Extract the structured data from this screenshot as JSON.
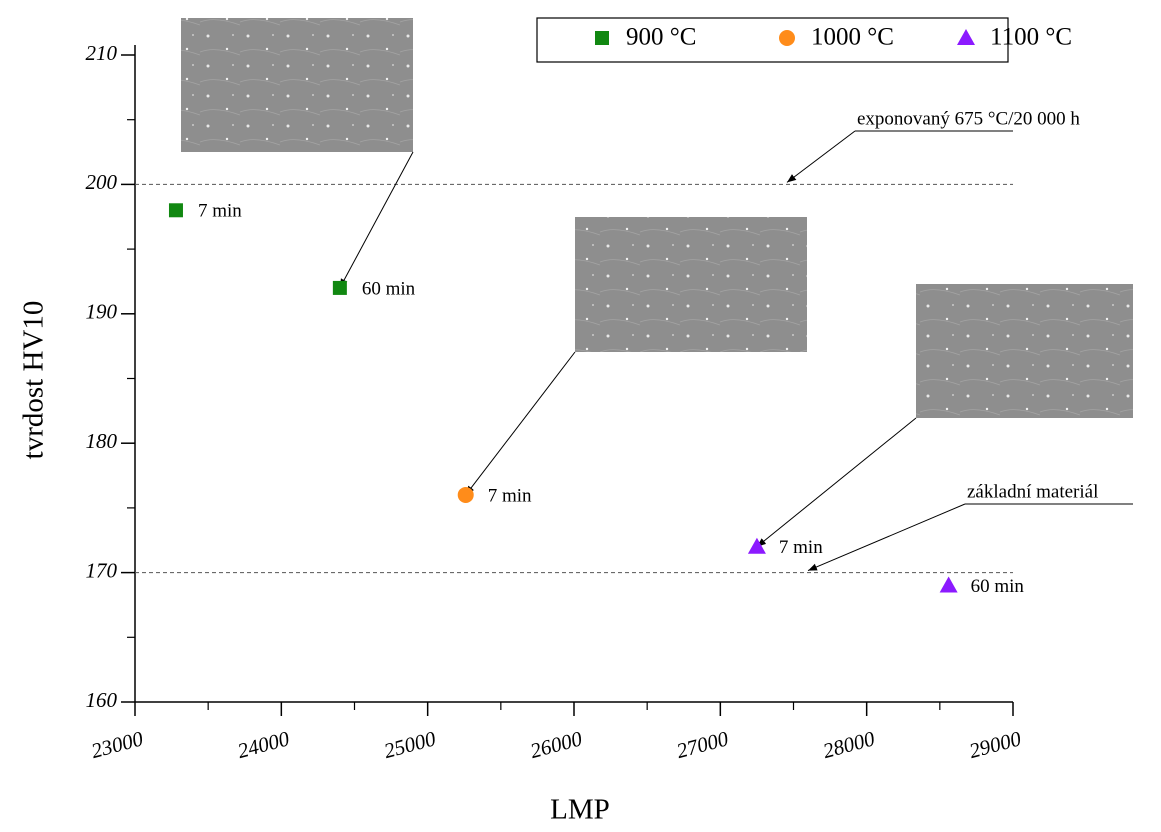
{
  "chart_data": {
    "type": "scatter",
    "x_label": "LMP",
    "y_label": "tvrdost HV10",
    "xlim": [
      23000,
      29000
    ],
    "xticks": [
      23000,
      24000,
      25000,
      26000,
      27000,
      28000,
      29000
    ],
    "xticks_minor": [
      23500,
      24500,
      25500,
      26500,
      27500,
      28500
    ],
    "ylim": [
      160,
      210
    ],
    "yticks": [
      160,
      170,
      180,
      190,
      200,
      210
    ],
    "yticks_minor": [
      165,
      175,
      185,
      195,
      205
    ],
    "series": [
      {
        "name": "900 °C",
        "color": "#118811",
        "marker": "square",
        "x": [
          23280,
          24400
        ],
        "values": [
          198,
          192
        ],
        "point_labels": [
          "7 min",
          "60 min"
        ]
      },
      {
        "name": "1000 °C",
        "color": "#ff8c1a",
        "marker": "circle",
        "x": [
          25260
        ],
        "values": [
          176
        ],
        "point_labels": [
          "7 min"
        ]
      },
      {
        "name": "1100 °C",
        "color": "#8c1aff",
        "marker": "triangle",
        "x": [
          27250,
          28560
        ],
        "values": [
          172,
          169
        ],
        "point_labels": [
          "7 min",
          "60 min"
        ]
      }
    ],
    "reference_lines": [
      {
        "value": 200,
        "label": "exponovaný 675 °C/20 000 h"
      },
      {
        "value": 170,
        "label": "základní materiál"
      }
    ]
  }
}
